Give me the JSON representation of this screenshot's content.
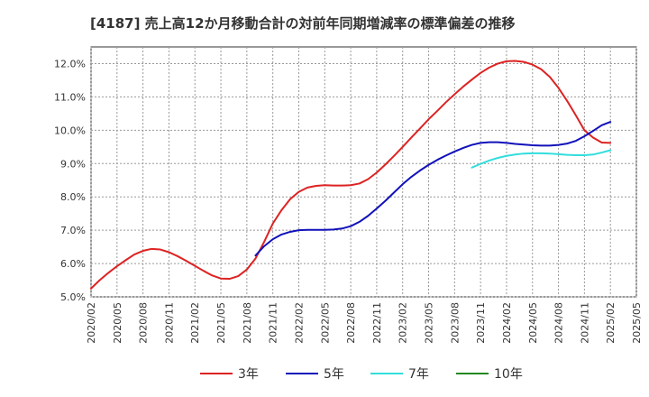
{
  "chart_data": {
    "type": "line",
    "title": "[4187]  売上高12か月移動合計の対前年同期増減率の標準偏差の推移",
    "xlabel": "",
    "ylabel": "",
    "ylim": [
      5.0,
      12.5
    ],
    "yticks": [
      5.0,
      6.0,
      7.0,
      8.0,
      9.0,
      10.0,
      11.0,
      12.0
    ],
    "ytick_labels": [
      "5.0%",
      "6.0%",
      "7.0%",
      "8.0%",
      "9.0%",
      "10.0%",
      "11.0%",
      "12.0%"
    ],
    "x_start": "2020/02",
    "x_end": "2025/05",
    "xtick_labels": [
      "2020/02",
      "2020/05",
      "2020/08",
      "2020/11",
      "2021/02",
      "2021/05",
      "2021/08",
      "2021/11",
      "2022/02",
      "2022/05",
      "2022/08",
      "2022/11",
      "2023/02",
      "2023/05",
      "2023/08",
      "2023/11",
      "2024/02",
      "2024/05",
      "2024/08",
      "2024/11",
      "2025/02",
      "2025/05"
    ],
    "grid": true,
    "legend_position": "bottom",
    "series": [
      {
        "name": "3年",
        "color": "#dd2222",
        "start": "2020/02",
        "values": [
          5.25,
          5.5,
          5.72,
          5.92,
          6.1,
          6.27,
          6.38,
          6.44,
          6.42,
          6.34,
          6.22,
          6.08,
          5.93,
          5.78,
          5.64,
          5.55,
          5.54,
          5.62,
          5.82,
          6.15,
          6.65,
          7.2,
          7.6,
          7.93,
          8.15,
          8.28,
          8.33,
          8.35,
          8.34,
          8.34,
          8.35,
          8.4,
          8.53,
          8.73,
          8.97,
          9.23,
          9.5,
          9.78,
          10.05,
          10.33,
          10.58,
          10.84,
          11.08,
          11.31,
          11.52,
          11.72,
          11.88,
          12.0,
          12.07,
          12.08,
          12.05,
          11.97,
          11.83,
          11.6,
          11.27,
          10.88,
          10.45,
          10.0,
          9.78,
          9.63,
          9.62
        ]
      },
      {
        "name": "5年",
        "color": "#1111bb",
        "start": "2021/09",
        "values": [
          6.24,
          6.52,
          6.73,
          6.87,
          6.95,
          7.0,
          7.01,
          7.01,
          7.01,
          7.02,
          7.05,
          7.12,
          7.25,
          7.43,
          7.65,
          7.88,
          8.13,
          8.38,
          8.6,
          8.79,
          8.96,
          9.11,
          9.24,
          9.36,
          9.47,
          9.56,
          9.62,
          9.64,
          9.64,
          9.62,
          9.59,
          9.57,
          9.55,
          9.54,
          9.54,
          9.56,
          9.6,
          9.68,
          9.82,
          9.98,
          10.15,
          10.25
        ]
      },
      {
        "name": "7年",
        "color": "#33dddd",
        "start": "2023/10",
        "values": [
          8.88,
          8.99,
          9.09,
          9.17,
          9.23,
          9.27,
          9.3,
          9.31,
          9.31,
          9.3,
          9.28,
          9.26,
          9.25,
          9.25,
          9.27,
          9.33,
          9.4
        ]
      },
      {
        "name": "10年",
        "color": "#228822",
        "start": "2025/02",
        "values": []
      }
    ]
  }
}
